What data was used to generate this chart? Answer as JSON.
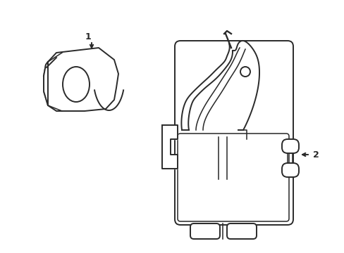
{
  "bg_color": "#ffffff",
  "line_color": "#2a2a2a",
  "line_width": 1.4,
  "label_1": "1",
  "label_2": "2",
  "fig_width": 4.89,
  "fig_height": 3.6,
  "dpi": 100
}
